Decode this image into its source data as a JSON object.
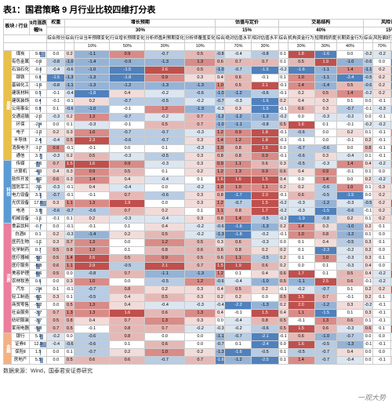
{
  "title": "表1：国君策略 9 月行业比较四维打分表",
  "footer": "数据来源：Wind，国泰君安证券研究",
  "watermark": "一观大势",
  "colors": {
    "sector_cycle": "#e8c04a",
    "sector_tech": "#5b9bd5",
    "sector_cons": "#ed7d9c",
    "sector_fin": "#f4b183",
    "red4": "#c0504d",
    "red3": "#d98b87",
    "red2": "#e6b8b5",
    "red1": "#f2dcda",
    "blue4": "#4f81bd",
    "blue3": "#95b3d7",
    "blue2": "#b8cce4",
    "blue1": "#dce6f1",
    "bar": "#7a9abf"
  },
  "header": {
    "groups": [
      {
        "label": "权重",
        "span": 1,
        "weight": ""
      },
      {
        "label": "增长预期",
        "span": 5,
        "weight": "30%"
      },
      {
        "label": "估值与定价",
        "span": 3,
        "weight": "15%"
      },
      {
        "label": "交易结构",
        "span": 4,
        "weight": "40%"
      },
      {
        "label": "风险认知",
        "span": 3,
        "weight": "15%"
      }
    ],
    "cols": [
      {
        "l1": "板块",
        "l2": ""
      },
      {
        "l1": "行业",
        "l2": ""
      },
      {
        "l1": "9月涨跌",
        "l2": "幅%"
      },
      {
        "l1": "综合得分",
        "l2": ""
      },
      {
        "l1": "综合",
        "l2": ""
      },
      {
        "l1": "行业当年预期变化",
        "l2": "10%"
      },
      {
        "l1": "行业增长预期变化",
        "l2": "50%"
      },
      {
        "l1": "分析师盈利预期变化",
        "l2": "30%"
      },
      {
        "l1": "分析师覆盖变化",
        "l2": "10%"
      },
      {
        "l1": "综合",
        "l2": ""
      },
      {
        "l1": "绝对估值水平",
        "l2": "70%"
      },
      {
        "l1": "相对估值水平",
        "l2": "30%"
      },
      {
        "l1": "综合",
        "l2": ""
      },
      {
        "l1": "机构资金行为",
        "l2": "30%"
      },
      {
        "l1": "短期拥挤度",
        "l2": "30%"
      },
      {
        "l1": "长期资金行为",
        "l2": "40%"
      },
      {
        "l1": "综合",
        "l2": ""
      },
      {
        "l1": "风险偏好",
        "l2": "70%"
      },
      {
        "l1": "资产久期匹配",
        "l2": "30%"
      }
    ]
  },
  "sectors": [
    {
      "name": "周期",
      "color": "#e8c04a",
      "rows": [
        {
          "ind": "煤炭",
          "chg": 9.6,
          "vals": [
            0.0,
            0.2,
            -1.1,
            0.9,
            -0.7,
            0.5,
            -0.8,
            -0.4,
            -0.8,
            0.1,
            1.8,
            -1.6,
            0.0,
            -0.2,
            -0.2,
            -0.9
          ]
        },
        {
          "ind": "有色金属",
          "chg": -0.9,
          "vals": [
            -0.8,
            -1.0,
            -1.4,
            -0.9,
            -1.3,
            1.3,
            0.6,
            0.7,
            0.7,
            0.1,
            0.5,
            1.9,
            -1.0,
            -0.6,
            0.0,
            -2.0
          ]
        },
        {
          "ind": "石油石化",
          "chg": -0.6,
          "vals": [
            -0.4,
            -0.6,
            -1.0,
            -1.5,
            2.6,
            0.5,
            -1.0,
            -0.7,
            -1.5,
            -0.2,
            -1.6,
            -1.1,
            1.4,
            -1.1,
            0.2,
            -1.9
          ]
        },
        {
          "ind": "钢铁",
          "chg": 0.8,
          "vals": [
            -1.5,
            -1.3,
            -1.3,
            -1.8,
            0.9,
            0.3,
            0.4,
            0.6,
            -0.1,
            0.1,
            1.0,
            -1.1,
            -2.4,
            -0.5,
            0.2,
            -2.0
          ]
        },
        {
          "ind": "基础化工",
          "chg": -1.9,
          "vals": [
            -0.8,
            -1.1,
            -1.3,
            -1.2,
            -1.3,
            -1.3,
            1.0,
            0.5,
            2.1,
            -0.1,
            1.4,
            -1.4,
            0.5,
            -0.6,
            0.2,
            -2.3
          ]
        },
        {
          "ind": "建筑材料",
          "chg": 0.5,
          "vals": [
            -0.1,
            -0.4,
            -1.8,
            0.4,
            -0.2,
            -0.6,
            -1.0,
            -1.2,
            -0.6,
            -0.1,
            0.2,
            0.5,
            1.4,
            -0.2,
            0.2,
            -0.9
          ]
        },
        {
          "ind": "建筑装饰",
          "chg": 0.4,
          "vals": [
            -0.1,
            -0.1,
            0.2,
            -0.7,
            -0.5,
            -0.2,
            -0.7,
            -0.3,
            -1.6,
            0.2,
            0.4,
            0.3,
            0.1,
            0.0,
            -0.1,
            0.3
          ]
        },
        {
          "ind": "公用事业",
          "chg": 0.8,
          "vals": [
            0.1,
            -0.6,
            -1.0,
            -0.1,
            1.2,
            -1.3,
            -0.3,
            0.3,
            -1.5,
            -0.1,
            0.6,
            0.3,
            -0.7,
            -0.1,
            -0.3,
            -1.1
          ]
        },
        {
          "ind": "交通运输",
          "chg": -2.0,
          "vals": [
            -0.3,
            0.2,
            1.3,
            -0.7,
            -0.2,
            0.7,
            -1.2,
            -1.2,
            -1.2,
            -0.2,
            0.0,
            -0.3,
            -0.2,
            0.0,
            -0.1,
            0.0
          ]
        },
        {
          "ind": "环保",
          "chg": -2.4,
          "vals": [
            0.0,
            0.1,
            -0.3,
            -0.1,
            0.5,
            0.7,
            -1.0,
            -1.1,
            -0.8,
            0.5,
            1.6,
            0.1,
            -0.1,
            -0.2,
            -0.2,
            -0.2
          ]
        },
        {
          "ind": "电子",
          "chg": -1.3,
          "vals": [
            0.2,
            0.3,
            1.0,
            -0.7,
            -0.7,
            -0.3,
            1.2,
            0.9,
            1.8,
            -0.1,
            -0.6,
            0.0,
            0.2,
            0.1,
            -0.1,
            1.0
          ]
        },
        {
          "ind": "半导体",
          "chg": 2.4,
          "vals": [
            -0.4,
            0.5,
            2.3,
            -0.6,
            -0.7,
            0.3,
            1.4,
            1.2,
            1.8,
            -0.1,
            -0.1,
            0.0,
            -0.1,
            0.2,
            -0.1,
            0.5
          ]
        },
        {
          "ind": "消费电子",
          "chg": -1.7,
          "vals": [
            0.9,
            -0.1,
            -0.1,
            0.0,
            0.1,
            -0.3,
            1.0,
            0.8,
            1.5,
            0.0,
            -0.7,
            -0.6,
            0.0,
            0.8,
            -0.1,
            3.1
          ]
        },
        {
          "ind": "通信",
          "chg": 3.7,
          "vals": [
            -0.3,
            0.2,
            0.5,
            -0.3,
            -0.5,
            0.3,
            0.8,
            0.8,
            0.9,
            -0.1,
            -0.6,
            0.3,
            -0.4,
            0.1,
            -0.1,
            1.1
          ]
        }
      ]
    },
    {
      "name": "科技",
      "color": "#5b9bd5",
      "rows": [
        {
          "ind": "传媒",
          "chg": -7.6,
          "vals": [
            0.7,
            1.5,
            1.6,
            0.9,
            -0.3,
            0.3,
            0.9,
            1.1,
            0.6,
            0.3,
            -0.5,
            -0.3,
            1.4,
            0.4,
            -0.2,
            1.0
          ]
        },
        {
          "ind": "计算机",
          "chg": -4.3,
          "vals": [
            0.4,
            0.3,
            0.9,
            0.5,
            0.1,
            0.2,
            1.2,
            1.3,
            0.9,
            0.6,
            0.4,
            0.9,
            -0.1,
            0.1,
            0.0,
            0.6
          ]
        },
        {
          "ind": "软件开发",
          "chg": -6.2,
          "vals": [
            0.6,
            0.3,
            1.4,
            0.4,
            -0.4,
            0.1,
            1.6,
            1.6,
            1.5,
            0.4,
            0.0,
            1.4,
            0.0,
            0.2,
            -0.2,
            1.0
          ]
        },
        {
          "ind": "国防军工",
          "chg": -3.1,
          "vals": [
            -0.3,
            -0.1,
            0.4,
            -0.4,
            0.0,
            -0.2,
            1.0,
            1.0,
            1.1,
            0.2,
            0.2,
            -0.6,
            1.0,
            0.1,
            0.3,
            -0.2
          ]
        },
        {
          "ind": "电力设备",
          "chg": 3.1,
          "vals": [
            -0.7,
            -0.1,
            -0.1,
            0.7,
            -0.6,
            0.3,
            0.8,
            -1.7,
            2.0,
            -0.1,
            0.6,
            -0.5,
            -1.5,
            0.0,
            0.2,
            -0.3
          ]
        },
        {
          "ind": "光伏设备",
          "chg": 17.0,
          "vals": [
            0.3,
            1.1,
            1.3,
            1.9,
            0.0,
            0.3,
            1.2,
            -0.7,
            1.5,
            -0.2,
            -0.3,
            -1.2,
            -0.3,
            -0.5,
            0.2,
            1.9
          ]
        },
        {
          "ind": "电池",
          "chg": 3.8,
          "vals": [
            -0.6,
            -0.7,
            -0.6,
            0.7,
            0.2,
            0.1,
            1.1,
            0.8,
            1.7,
            -0.2,
            -0.3,
            -1.5,
            -0.6,
            -0.1,
            0.2,
            -0.9
          ]
        },
        {
          "ind": "机械设备",
          "chg": -1.1,
          "vals": [
            -0.1,
            0.1,
            0.2,
            -0.3,
            -0.4,
            0.3,
            0.8,
            1.4,
            -0.5,
            -0.2,
            -1.9,
            -0.8,
            0.2,
            0.1,
            0.2,
            0.3
          ]
        }
      ]
    },
    {
      "name": "消费",
      "color": "#ed7d9c",
      "rows": [
        {
          "ind": "食品饮料",
          "chg": -0.7,
          "vals": [
            0.0,
            -0.1,
            -0.1,
            0.1,
            0.4,
            -0.2,
            -0.6,
            -1.6,
            -1.3,
            0.2,
            1.4,
            0.3,
            -1.0,
            0.2,
            0.1,
            0.4
          ]
        },
        {
          "ind": "白酒Ⅱ",
          "chg": 0.1,
          "vals": [
            0.2,
            -0.3,
            -1.4,
            0.2,
            0.5,
            -0.2,
            -1.3,
            -1.8,
            -0.2,
            -0.1,
            1.0,
            0.8,
            -1.2,
            0.1,
            0.0,
            0.4
          ]
        },
        {
          "ind": "医药生物",
          "chg": -1.1,
          "vals": [
            0.3,
            0.7,
            1.3,
            0.0,
            1.2,
            0.5,
            0.3,
            0.6,
            -0.3,
            0.0,
            0.1,
            0.4,
            -0.5,
            0.3,
            0.1,
            0.7
          ]
        },
        {
          "ind": "化学制药",
          "chg": 0.7,
          "vals": [
            0.5,
            0.8,
            1.3,
            0.1,
            0.8,
            0.6,
            0.6,
            0.8,
            0.2,
            0.2,
            0.1,
            -2.3,
            -0.2,
            0.2,
            0.0,
            0.6
          ]
        },
        {
          "ind": "医疗器械",
          "chg": -5.0,
          "vals": [
            0.5,
            1.4,
            2.6,
            0.5,
            0.9,
            0.5,
            0.6,
            1.1,
            -0.5,
            0.2,
            0.1,
            1.0,
            -0.3,
            0.3,
            0.1,
            0.7
          ]
        },
        {
          "ind": "医疗服务",
          "chg": -6.8,
          "vals": [
            0.6,
            1.1,
            2.9,
            -0.5,
            2.1,
            0.7,
            1.5,
            1.9,
            0.6,
            0.2,
            0.0,
            0.1,
            -0.3,
            0.4,
            0.0,
            1.3
          ]
        },
        {
          "ind": "美容护理",
          "chg": -6.6,
          "vals": [
            0.5,
            0.0,
            -0.8,
            0.7,
            -1.1,
            -1.3,
            1.2,
            0.1,
            0.4,
            0.6,
            1.7,
            0.1,
            0.5,
            0.4,
            -0.2,
            1.9
          ]
        },
        {
          "ind": "农林牧渔",
          "chg": 0.6,
          "vals": [
            0.0,
            0.3,
            1.0,
            0.0,
            -0.5,
            1.2,
            -0.6,
            -0.4,
            -1.0,
            0.5,
            -1.1,
            2.5,
            0.6,
            -0.1,
            -0.2,
            0.3
          ]
        },
        {
          "ind": "汽车",
          "chg": -2.4,
          "vals": [
            0.1,
            -0.1,
            -0.7,
            0.8,
            0.2,
            0.3,
            0.4,
            0.5,
            0.2,
            -0.1,
            -0.2,
            -0.7,
            0.1,
            0.2,
            0.2,
            1.8
          ]
        },
        {
          "ind": "轻工制造",
          "chg": -6.1,
          "vals": [
            0.3,
            0.1,
            -0.5,
            0.4,
            0.5,
            0.3,
            0.2,
            0.2,
            0.0,
            0.5,
            1.5,
            0.7,
            -0.1,
            0.2,
            0.1,
            -0.6
          ]
        },
        {
          "ind": "商贸零售",
          "chg": -5.2,
          "vals": [
            0.0,
            0.5,
            1.3,
            0.4,
            -0.4,
            -0.3,
            -0.4,
            -2.2,
            -1.3,
            0.2,
            2.0,
            -1.2,
            0.3,
            -0.2,
            -0.1,
            0.4
          ]
        },
        {
          "ind": "社会服务",
          "chg": -3.7,
          "vals": [
            0.7,
            1.3,
            1.3,
            1.6,
            0.6,
            1.3,
            0.4,
            -0.1,
            1.5,
            0.4,
            1.1,
            -1.5,
            0.1,
            0.3,
            -0.1,
            0.8
          ]
        },
        {
          "ind": "纺织服装",
          "chg": -3.7,
          "vals": [
            0.5,
            0.8,
            0.4,
            0.7,
            1.3,
            0.3,
            0.0,
            -0.4,
            0.8,
            0.5,
            -0.1,
            1.3,
            0.6,
            0.1,
            -0.1,
            0.6
          ]
        },
        {
          "ind": "家用电器",
          "chg": -5.8,
          "vals": [
            0.7,
            0.5,
            -0.1,
            0.8,
            0.7,
            -0.2,
            -0.3,
            -0.2,
            -0.6,
            0.5,
            1.5,
            0.6,
            -0.3,
            0.6,
            0.1,
            1.7
          ]
        }
      ]
    },
    {
      "name": "金融",
      "color": "#f4b183",
      "rows": [
        {
          "ind": "银行",
          "chg": 5.9,
          "vals": [
            -0.2,
            0.0,
            -0.6,
            0.8,
            0.0,
            0.0,
            -1.1,
            -0.7,
            -2.1,
            -0.1,
            0.6,
            -1.0,
            -0.7,
            0.0,
            0.0,
            0.1
          ]
        },
        {
          "ind": "证券Ⅱ",
          "chg": 12.9,
          "vals": [
            -0.4,
            -0.6,
            -0.6,
            0.1,
            0.6,
            0.0,
            -0.7,
            0.1,
            -2.4,
            0.0,
            1.6,
            -0.5,
            -1.3,
            -0.1,
            -0.1,
            0.0
          ]
        },
        {
          "ind": "保险Ⅱ",
          "chg": 1.5,
          "vals": [
            0.0,
            0.1,
            -0.7,
            0.2,
            1.0,
            0.2,
            -1.3,
            -1.6,
            -0.5,
            0.1,
            -0.5,
            -0.7,
            0.4,
            0.0,
            0.0,
            0.0
          ]
        },
        {
          "ind": "房地产",
          "chg": 5.5,
          "vals": [
            0.0,
            0.5,
            0.6,
            0.6,
            -0.7,
            0.7,
            -1.6,
            -1.2,
            -2.5,
            0.1,
            1.4,
            -0.7,
            -0.4,
            0.0,
            -0.1,
            0.4
          ]
        }
      ]
    }
  ]
}
